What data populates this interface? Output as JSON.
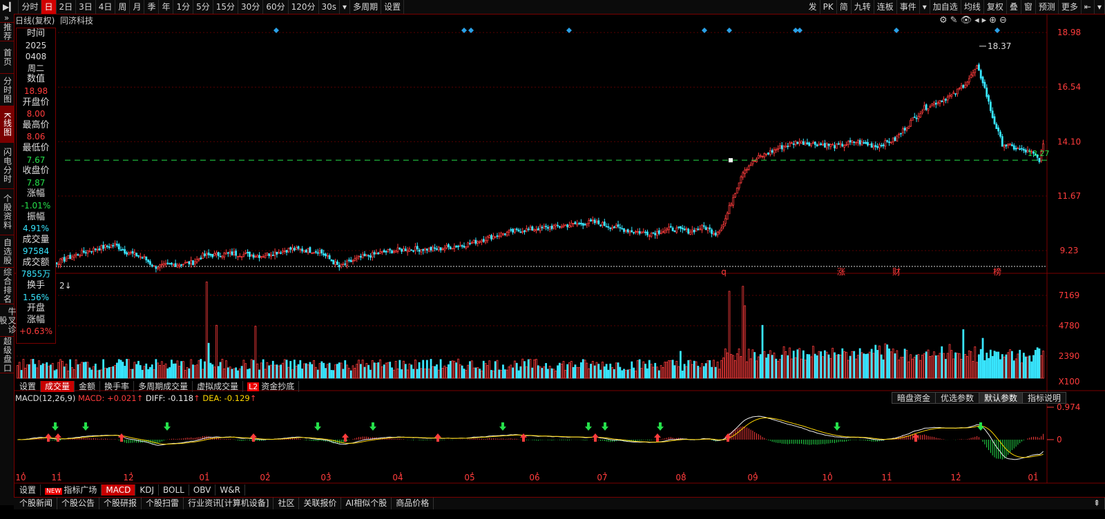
{
  "toolbar": {
    "left_items": [
      "分时",
      "日",
      "2日",
      "3日",
      "4日",
      "周",
      "月",
      "季",
      "年",
      "1分",
      "5分",
      "15分",
      "30分",
      "60分",
      "120分",
      "30s",
      "多周期",
      "设置"
    ],
    "active_index": 1,
    "right_items": [
      "发",
      "PK",
      "简",
      "九转",
      "连板",
      "事件",
      "加自选",
      "均线",
      "复权",
      "叠",
      "窗",
      "预测",
      "更多"
    ]
  },
  "leftnav": [
    "推荐",
    "首页",
    "分时图",
    "K线图",
    "闪电分时",
    "个股资料",
    "自选股",
    "综合排名",
    "牛叉诊股",
    "超级盘口"
  ],
  "leftnav_active": 3,
  "chart_header": {
    "period": "日线(复权)",
    "stock": "同济科技"
  },
  "info_panel": [
    {
      "label": "时间",
      "value": "2025"
    },
    {
      "label": "",
      "value": "0408"
    },
    {
      "label": "",
      "value": "周二"
    },
    {
      "label": "数值",
      "value": "18.98"
    },
    {
      "label": "开盘价",
      "value": "8.00"
    },
    {
      "label": "最高价",
      "value": "8.06"
    },
    {
      "label": "最低价",
      "value": "7.67"
    },
    {
      "label": "收盘价",
      "value": "7.87"
    },
    {
      "label": "涨幅",
      "value": "-1.01%"
    },
    {
      "label": "振幅",
      "value": "4.91%"
    },
    {
      "label": "成交量",
      "value": "97584"
    },
    {
      "label": "成交额",
      "value": "7855万"
    },
    {
      "label": "换手",
      "value": "1.56%"
    },
    {
      "label": "开盘",
      "value": ""
    },
    {
      "label": "涨幅",
      "value": "+0.63%"
    }
  ],
  "price_axis": [
    "18.98",
    "16.54",
    "14.10",
    "11.67",
    "9.23"
  ],
  "price_high_label": "18.37",
  "price_current_label": "13.27",
  "event_markers": [
    "q",
    "涨",
    "财",
    "榜"
  ],
  "volume_axis": [
    "7169",
    "4780",
    "2390",
    "X100"
  ],
  "volume_tabs": [
    "设置",
    "成交量",
    "金额",
    "换手率",
    "多周期成交量",
    "虚拟成交量",
    "资金抄底"
  ],
  "volume_tab_badge": "L2",
  "volume_tabs_active": 1,
  "macd": {
    "name": "MACD(12,26,9)",
    "macd_label": "MACD: +0.021",
    "diff_label": "DIFF: -0.118",
    "dea_label": "DEA: -0.129",
    "axis_top": "0.974",
    "axis_zero": "0",
    "buttons": [
      "暗盘资金",
      "优选参数",
      "默认参数",
      "指标说明"
    ],
    "buttons_active": 2
  },
  "months": [
    "10",
    "11",
    "12",
    "01",
    "02",
    "03",
    "04",
    "05",
    "06",
    "07",
    "08",
    "09",
    "10",
    "11",
    "12",
    "01"
  ],
  "indicator_tabs": [
    "设置",
    "指标广场",
    "MACD",
    "KDJ",
    "BOLL",
    "OBV",
    "W&R"
  ],
  "indicator_new_badge": "NEW",
  "indicator_tabs_active": 2,
  "bottom_tabs": [
    "个股新闻",
    "个股公告",
    "个股研报",
    "个股扫雷",
    "行业资讯[计算机设备]",
    "社区",
    "关联报价",
    "AI相似个股",
    "商品价格"
  ],
  "chart_data": {
    "type": "candlestick",
    "price_range": [
      8.4,
      19.2
    ],
    "volume_range": [
      0,
      7600
    ],
    "close_anchors": [
      [
        0,
        8.6
      ],
      [
        10,
        8.9
      ],
      [
        20,
        8.7
      ],
      [
        35,
        9.2
      ],
      [
        45,
        9.4
      ],
      [
        50,
        9.5
      ],
      [
        55,
        9.2
      ],
      [
        65,
        8.9
      ],
      [
        70,
        8.5
      ],
      [
        80,
        8.6
      ],
      [
        90,
        8.7
      ],
      [
        95,
        9.0
      ],
      [
        110,
        9.1
      ],
      [
        125,
        9.0
      ],
      [
        140,
        9.3
      ],
      [
        155,
        9.2
      ],
      [
        165,
        8.5
      ],
      [
        175,
        8.9
      ],
      [
        190,
        9.2
      ],
      [
        200,
        9.3
      ],
      [
        215,
        9.3
      ],
      [
        230,
        9.5
      ],
      [
        245,
        9.9
      ],
      [
        255,
        10.1
      ],
      [
        265,
        10.2
      ],
      [
        275,
        10.3
      ],
      [
        285,
        10.4
      ],
      [
        295,
        10.5
      ],
      [
        305,
        10.3
      ],
      [
        315,
        10.1
      ],
      [
        325,
        10.0
      ],
      [
        335,
        10.2
      ],
      [
        345,
        10.1
      ],
      [
        352,
        10.3
      ],
      [
        358,
        10.0
      ],
      [
        362,
        10.4
      ],
      [
        366,
        11.4
      ],
      [
        372,
        12.8
      ],
      [
        380,
        13.4
      ],
      [
        390,
        13.8
      ],
      [
        400,
        14.1
      ],
      [
        410,
        14.0
      ],
      [
        420,
        13.9
      ],
      [
        430,
        14.1
      ],
      [
        440,
        13.9
      ],
      [
        450,
        14.2
      ],
      [
        458,
        15.0
      ],
      [
        465,
        15.6
      ],
      [
        472,
        15.9
      ],
      [
        480,
        16.2
      ],
      [
        487,
        16.8
      ],
      [
        492,
        17.4
      ],
      [
        495,
        16.8
      ],
      [
        500,
        15.2
      ],
      [
        505,
        14.0
      ],
      [
        512,
        13.8
      ],
      [
        520,
        13.6
      ],
      [
        524,
        13.3
      ],
      [
        526,
        13.9
      ]
    ],
    "current_price": 13.27,
    "high_label_price": 18.37
  }
}
